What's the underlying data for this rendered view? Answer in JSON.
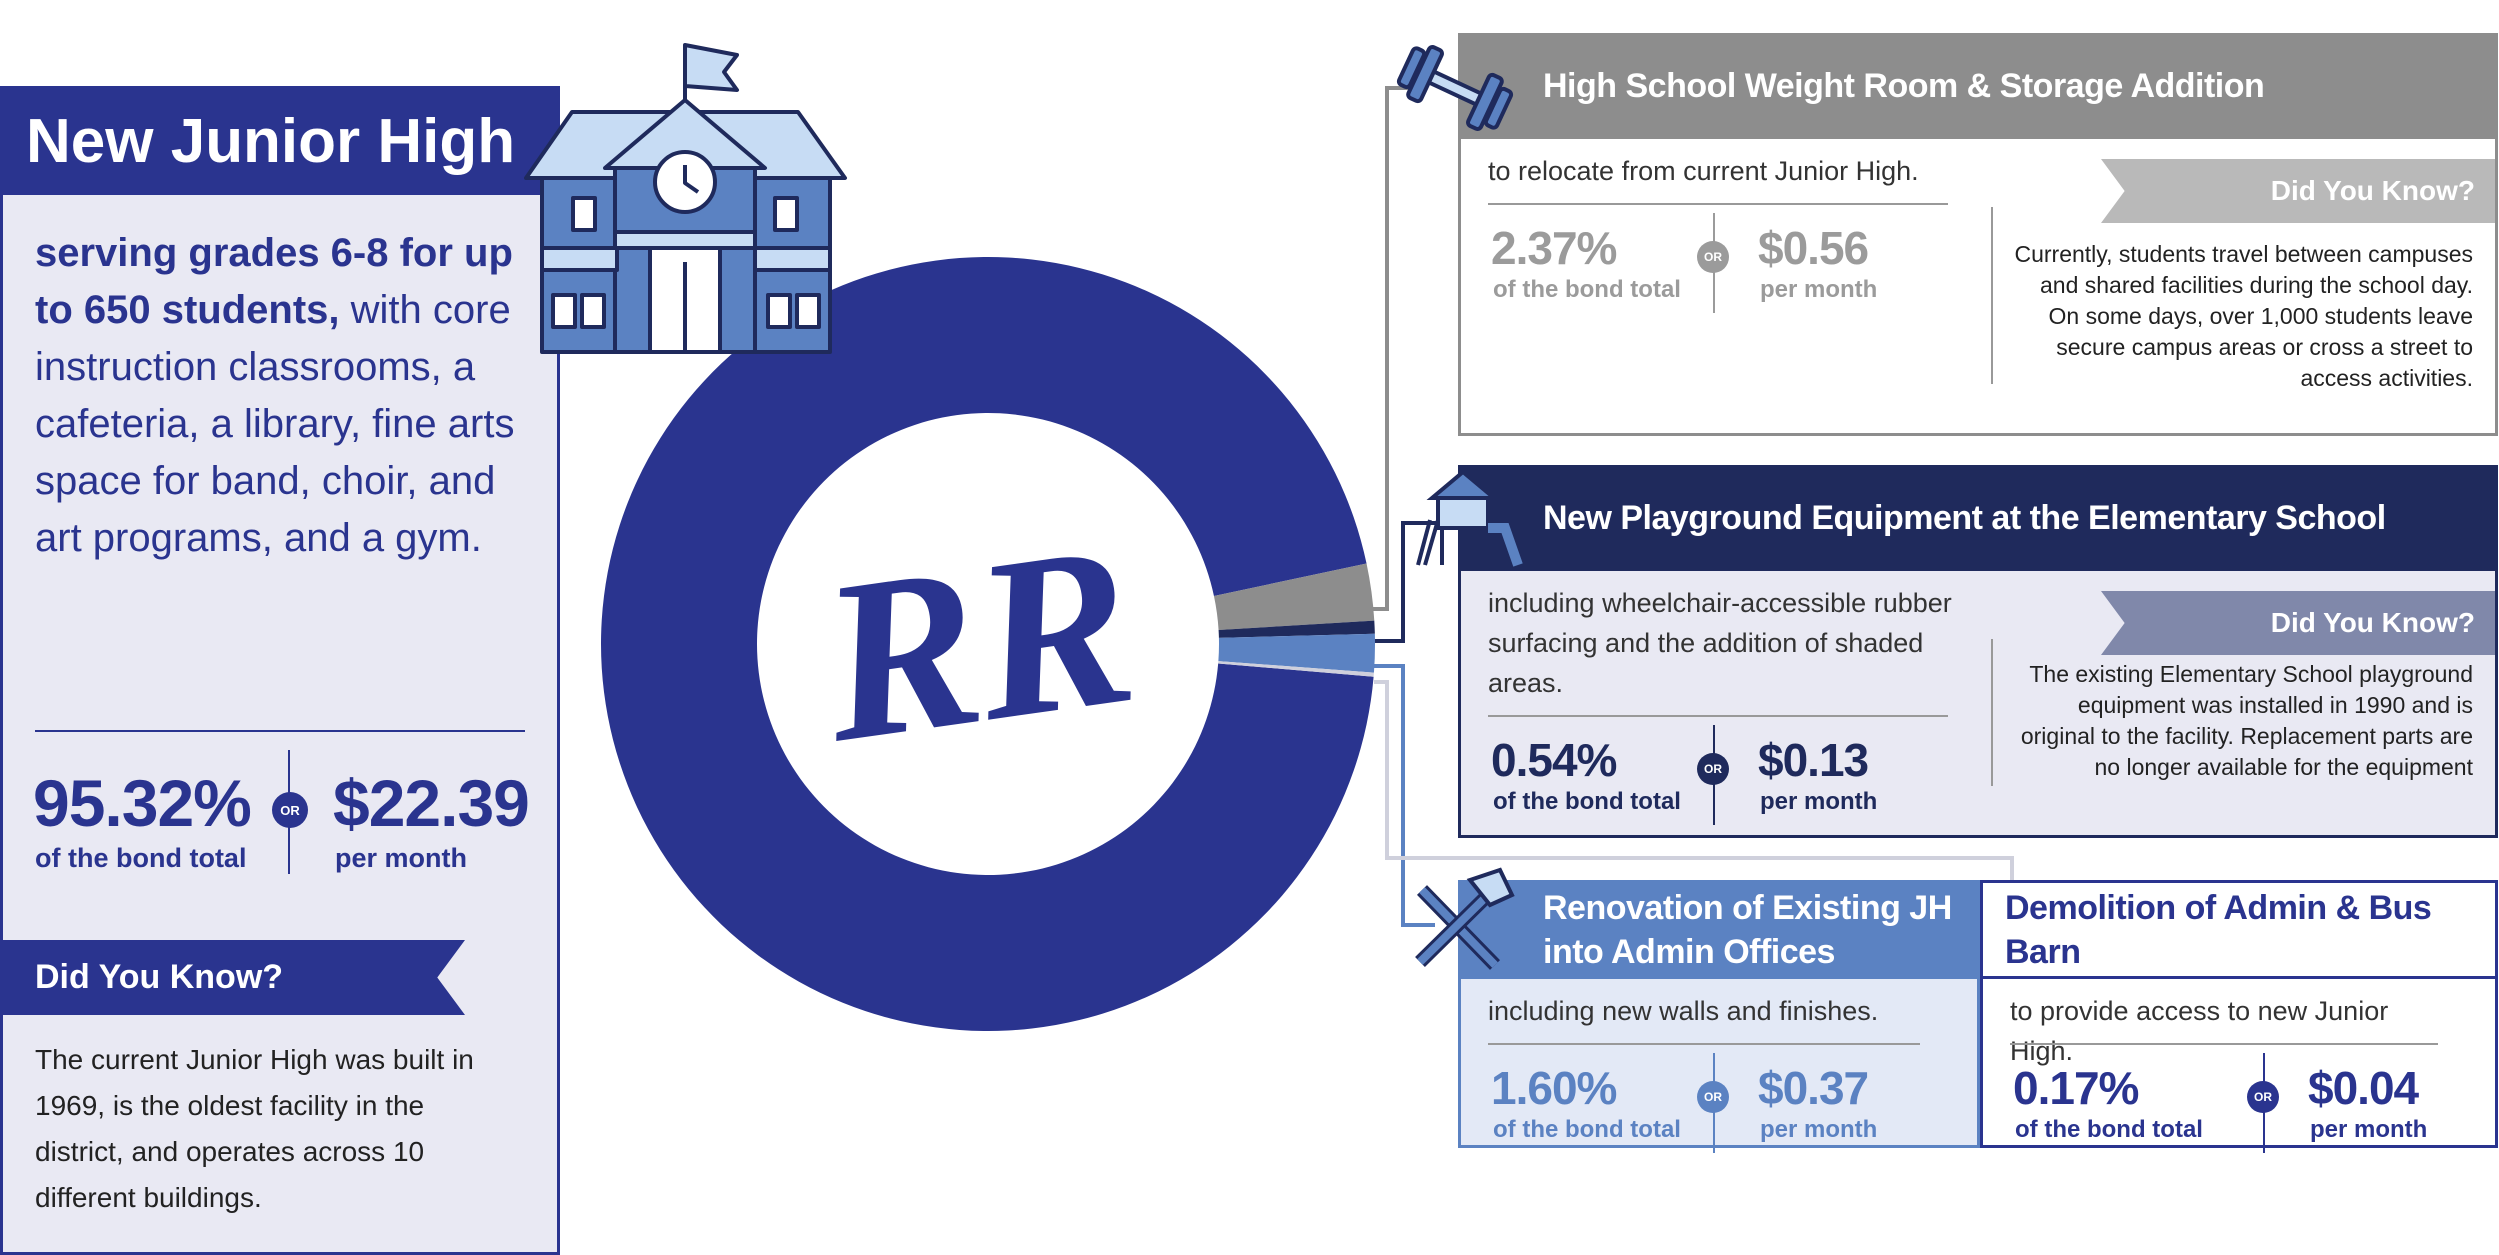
{
  "chart_data": {
    "type": "donut",
    "categories": [
      "New Junior High",
      "High School Weight Room & Storage Addition",
      "New Playground Equipment at the Elementary School",
      "Renovation of Existing JH into Admin Offices",
      "Demolition of Admin & Bus Barn"
    ],
    "values": [
      95.32,
      2.37,
      0.54,
      1.6,
      0.17
    ],
    "value_labels": [
      "95.32%",
      "2.37%",
      "0.54%",
      "1.60%",
      "0.17%"
    ],
    "colors": [
      "#2a348f",
      "#8d8d8d",
      "#1f2a5c",
      "#5b82c2",
      "#cfd0dc"
    ],
    "logo": "RR"
  },
  "labels": {
    "bond": "of the bond total",
    "month": "per month",
    "or": "OR",
    "did_you_know": "Did You Know?"
  },
  "panels": [
    {
      "lead": "serving grades 6-8 for up to 650 students,",
      "description": "with core instruction classrooms, a cafeteria, a library, fine arts space for band, choir, and art programs, and a gym.",
      "monthly": "$22.39",
      "did_you_know": "The current Junior High was built in 1969, is the oldest facility in the district, and operates across 10 different buildings."
    },
    {
      "description": "to relocate from current Junior High.",
      "monthly": "$0.56",
      "did_you_know": "Currently, students travel between campuses and shared facilities during the school day. On some days, over 1,000 students leave secure campus areas or cross a street to access activities."
    },
    {
      "description": "including wheelchair-accessible rubber surfacing and the addition of shaded areas.",
      "monthly": "$0.13",
      "did_you_know": "The existing Elementary School playground equipment was installed in 1990 and is original to the facility. Replacement parts are no longer available for the equipment"
    },
    {
      "description": "including new walls and finishes.",
      "monthly": "$0.37"
    },
    {
      "description": "to provide access to new Junior High.",
      "monthly": "$0.04"
    }
  ]
}
